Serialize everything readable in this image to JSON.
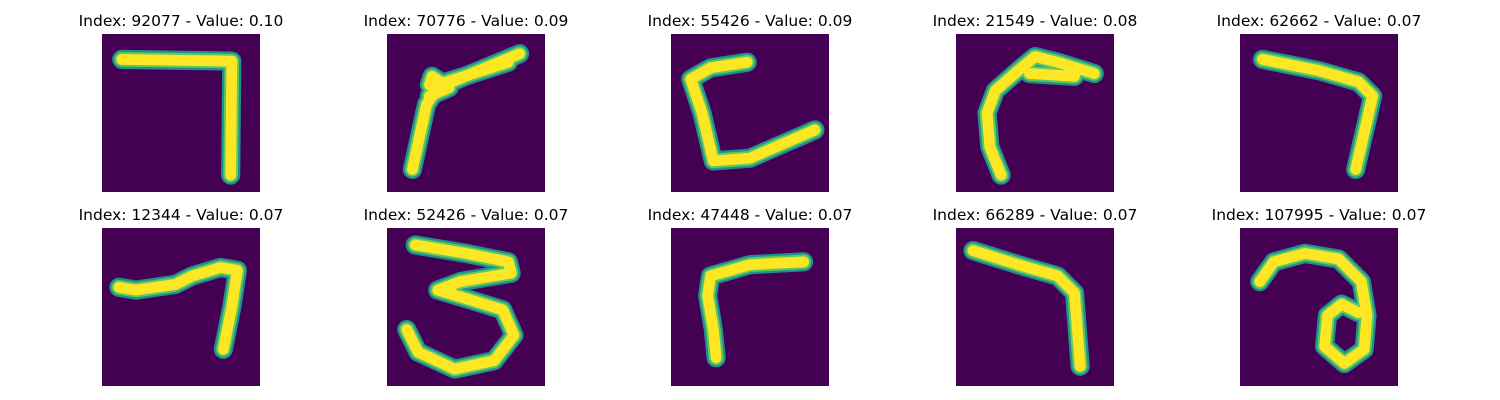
{
  "colors": {
    "background": "#440154",
    "stroke_edge": "#21908c",
    "stroke_mid": "#5ec962",
    "stroke_core": "#fde725"
  },
  "panels": [
    {
      "title": "Index: 92077 - Value: 0.10",
      "depicts": "digit-7"
    },
    {
      "title": "Index: 70776 - Value: 0.09",
      "depicts": "digit-f-shape"
    },
    {
      "title": "Index: 55426 - Value: 0.09",
      "depicts": "digit-c-shape"
    },
    {
      "title": "Index: 21549 - Value: 0.08",
      "depicts": "digit-f-curved"
    },
    {
      "title": "Index: 62662 - Value: 0.07",
      "depicts": "digit-7"
    },
    {
      "title": "Index: 12344 - Value: 0.07",
      "depicts": "digit-7"
    },
    {
      "title": "Index: 52426 - Value: 0.07",
      "depicts": "digit-3"
    },
    {
      "title": "Index: 47448 - Value: 0.07",
      "depicts": "digit-r-shape"
    },
    {
      "title": "Index: 66289 - Value: 0.07",
      "depicts": "digit-7"
    },
    {
      "title": "Index: 107995 - Value: 0.07",
      "depicts": "digit-a-shape"
    }
  ]
}
